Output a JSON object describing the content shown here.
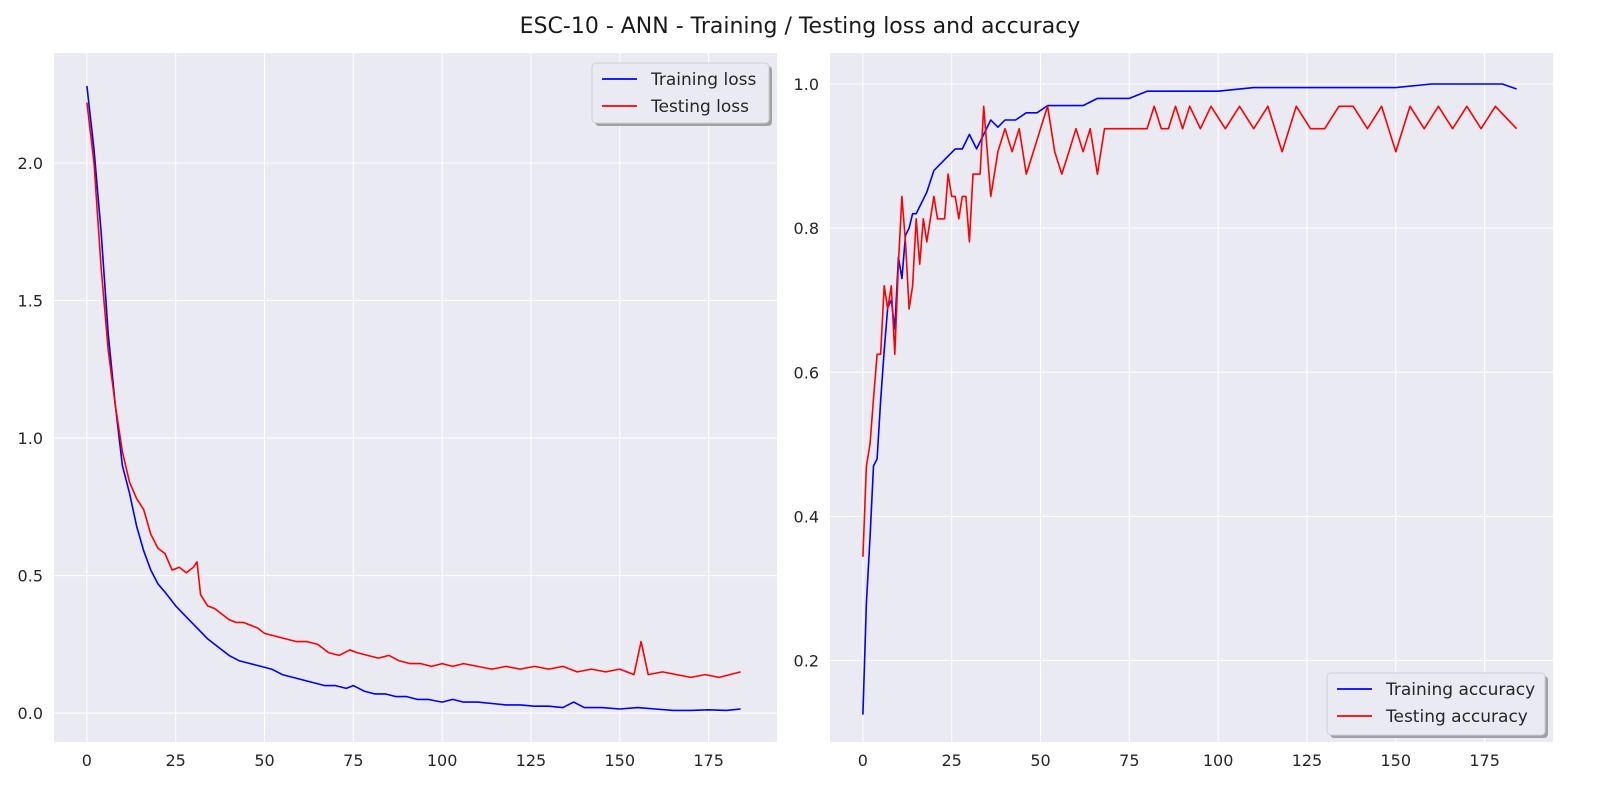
{
  "figure": {
    "title": "ESC-10 - ANN - Training / Testing loss and accuracy"
  },
  "chart_data": [
    {
      "type": "line",
      "title": "",
      "xlabel": "",
      "ylabel": "",
      "xlim": [
        -9.25,
        194.25
      ],
      "ylim": [
        -0.105,
        2.4
      ],
      "xticks": [
        0,
        25,
        50,
        75,
        100,
        125,
        150,
        175
      ],
      "yticks": [
        0.0,
        0.5,
        1.0,
        1.5,
        2.0
      ],
      "ytick_labels": [
        "0.0",
        "0.5",
        "1.0",
        "1.5",
        "2.0"
      ],
      "grid": true,
      "legend": "top-right",
      "series": [
        {
          "name": "Training loss",
          "color": "#0000ff",
          "x": [
            0,
            2,
            4,
            6,
            8,
            10,
            12,
            14,
            16,
            18,
            20,
            22,
            25,
            28,
            31,
            34,
            37,
            40,
            43,
            46,
            49,
            52,
            55,
            58,
            61,
            64,
            67,
            70,
            73,
            75,
            78,
            81,
            84,
            87,
            90,
            93,
            96,
            100,
            103,
            106,
            110,
            114,
            118,
            122,
            126,
            130,
            134,
            137,
            140,
            145,
            150,
            155,
            160,
            165,
            170,
            175,
            180,
            184
          ],
          "y": [
            2.28,
            2.05,
            1.75,
            1.38,
            1.12,
            0.9,
            0.8,
            0.68,
            0.59,
            0.52,
            0.47,
            0.44,
            0.39,
            0.35,
            0.31,
            0.27,
            0.24,
            0.21,
            0.19,
            0.18,
            0.17,
            0.16,
            0.14,
            0.13,
            0.12,
            0.11,
            0.1,
            0.1,
            0.09,
            0.1,
            0.08,
            0.07,
            0.07,
            0.06,
            0.06,
            0.05,
            0.05,
            0.04,
            0.05,
            0.04,
            0.04,
            0.035,
            0.03,
            0.03,
            0.025,
            0.025,
            0.02,
            0.04,
            0.02,
            0.02,
            0.015,
            0.02,
            0.015,
            0.01,
            0.01,
            0.012,
            0.01,
            0.015
          ]
        },
        {
          "name": "Testing loss",
          "color": "#ff0000",
          "x": [
            0,
            2,
            4,
            6,
            8,
            10,
            12,
            14,
            16,
            18,
            20,
            22,
            24,
            26,
            28,
            30,
            31,
            32,
            34,
            36,
            38,
            40,
            42,
            44,
            46,
            48,
            50,
            53,
            56,
            59,
            62,
            65,
            68,
            71,
            74,
            76,
            79,
            82,
            85,
            88,
            91,
            94,
            97,
            100,
            103,
            106,
            110,
            114,
            118,
            122,
            126,
            130,
            134,
            138,
            142,
            146,
            150,
            154,
            156,
            158,
            162,
            166,
            170,
            174,
            178,
            181,
            184
          ],
          "y": [
            2.22,
            2.0,
            1.62,
            1.32,
            1.12,
            0.95,
            0.84,
            0.78,
            0.74,
            0.65,
            0.6,
            0.58,
            0.52,
            0.53,
            0.51,
            0.53,
            0.55,
            0.43,
            0.39,
            0.38,
            0.36,
            0.34,
            0.33,
            0.33,
            0.32,
            0.31,
            0.29,
            0.28,
            0.27,
            0.26,
            0.26,
            0.25,
            0.22,
            0.21,
            0.23,
            0.22,
            0.21,
            0.2,
            0.21,
            0.19,
            0.18,
            0.18,
            0.17,
            0.18,
            0.17,
            0.18,
            0.17,
            0.16,
            0.17,
            0.16,
            0.17,
            0.16,
            0.17,
            0.15,
            0.16,
            0.15,
            0.16,
            0.14,
            0.26,
            0.14,
            0.15,
            0.14,
            0.13,
            0.14,
            0.13,
            0.14,
            0.15
          ]
        }
      ]
    },
    {
      "type": "line",
      "title": "",
      "xlabel": "",
      "ylabel": "",
      "xlim": [
        -9.25,
        194.25
      ],
      "ylim": [
        0.087,
        1.043
      ],
      "xticks": [
        0,
        25,
        50,
        75,
        100,
        125,
        150,
        175
      ],
      "yticks": [
        0.2,
        0.4,
        0.6,
        0.8,
        1.0
      ],
      "ytick_labels": [
        "0.2",
        "0.4",
        "0.6",
        "0.8",
        "1.0"
      ],
      "grid": true,
      "legend": "bottom-right",
      "series": [
        {
          "name": "Training accuracy",
          "color": "#0000ff",
          "x": [
            0,
            1,
            2,
            3,
            4,
            5,
            6,
            7,
            8,
            9,
            10,
            11,
            12,
            13,
            14,
            15,
            16,
            17,
            18,
            20,
            22,
            24,
            26,
            28,
            30,
            32,
            34,
            36,
            38,
            40,
            43,
            46,
            49,
            52,
            55,
            58,
            62,
            66,
            70,
            75,
            80,
            85,
            90,
            100,
            110,
            120,
            130,
            140,
            150,
            160,
            170,
            180,
            184
          ],
          "y": [
            0.125,
            0.28,
            0.37,
            0.47,
            0.48,
            0.56,
            0.63,
            0.69,
            0.7,
            0.66,
            0.76,
            0.73,
            0.79,
            0.8,
            0.82,
            0.82,
            0.83,
            0.84,
            0.85,
            0.88,
            0.89,
            0.9,
            0.91,
            0.91,
            0.93,
            0.91,
            0.93,
            0.95,
            0.94,
            0.95,
            0.95,
            0.96,
            0.96,
            0.97,
            0.97,
            0.97,
            0.97,
            0.98,
            0.98,
            0.98,
            0.99,
            0.99,
            0.99,
            0.99,
            0.995,
            0.995,
            0.995,
            0.995,
            0.995,
            1.0,
            1.0,
            1.0,
            0.993
          ]
        },
        {
          "name": "Testing accuracy",
          "color": "#ff0000",
          "x": [
            0,
            1,
            2,
            3,
            4,
            5,
            6,
            7,
            8,
            9,
            10,
            11,
            12,
            13,
            14,
            15,
            16,
            17,
            18,
            19,
            20,
            21,
            22,
            23,
            24,
            25,
            26,
            27,
            28,
            29,
            30,
            31,
            33,
            34,
            36,
            38,
            40,
            42,
            44,
            46,
            48,
            50,
            52,
            54,
            56,
            58,
            60,
            62,
            64,
            66,
            68,
            70,
            72,
            74,
            76,
            78,
            80,
            82,
            84,
            86,
            88,
            90,
            92,
            95,
            98,
            102,
            106,
            110,
            114,
            118,
            122,
            126,
            130,
            134,
            138,
            142,
            146,
            150,
            154,
            158,
            162,
            166,
            170,
            174,
            178,
            184
          ],
          "y": [
            0.344,
            0.47,
            0.5,
            0.563,
            0.625,
            0.625,
            0.72,
            0.688,
            0.72,
            0.625,
            0.75,
            0.844,
            0.78,
            0.688,
            0.72,
            0.813,
            0.75,
            0.813,
            0.781,
            0.813,
            0.844,
            0.813,
            0.813,
            0.813,
            0.875,
            0.844,
            0.844,
            0.813,
            0.844,
            0.844,
            0.781,
            0.875,
            0.875,
            0.969,
            0.844,
            0.906,
            0.938,
            0.906,
            0.938,
            0.875,
            0.906,
            0.938,
            0.969,
            0.906,
            0.875,
            0.906,
            0.938,
            0.906,
            0.938,
            0.875,
            0.938,
            0.938,
            0.938,
            0.938,
            0.938,
            0.938,
            0.938,
            0.969,
            0.938,
            0.938,
            0.969,
            0.938,
            0.969,
            0.938,
            0.969,
            0.938,
            0.969,
            0.938,
            0.969,
            0.906,
            0.969,
            0.938,
            0.938,
            0.969,
            0.969,
            0.938,
            0.969,
            0.906,
            0.969,
            0.938,
            0.969,
            0.938,
            0.969,
            0.938,
            0.969,
            0.938
          ]
        }
      ]
    }
  ]
}
